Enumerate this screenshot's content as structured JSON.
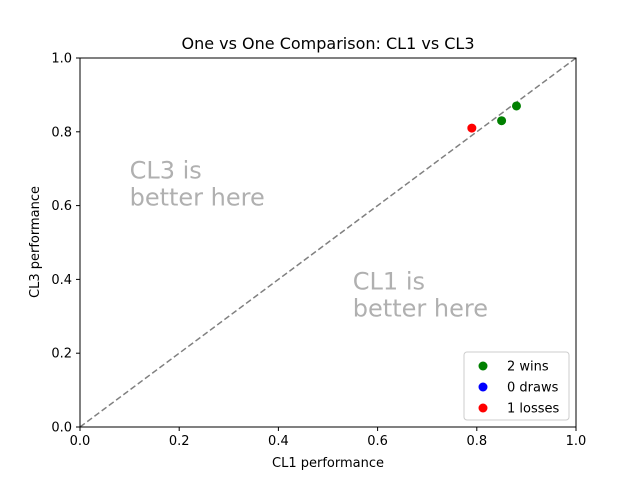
{
  "chart_data": {
    "type": "scatter",
    "title": "One vs One Comparison: CL1 vs CL3",
    "xlabel": "CL1 performance",
    "ylabel": "CL3 performance",
    "xlim": [
      0.0,
      1.0
    ],
    "ylim": [
      0.0,
      1.0
    ],
    "x_ticks": [
      "0.0",
      "0.2",
      "0.4",
      "0.6",
      "0.8",
      "1.0"
    ],
    "y_ticks": [
      "0.0",
      "0.2",
      "0.4",
      "0.6",
      "0.8",
      "1.0"
    ],
    "grid": false,
    "diagonal_line": true,
    "annotations": [
      {
        "lines": [
          "CL3 is",
          "better here"
        ],
        "x": 0.1,
        "y": 0.6
      },
      {
        "lines": [
          "CL1 is",
          "better here"
        ],
        "x": 0.55,
        "y": 0.3
      }
    ],
    "legend_position": "lower-right",
    "series": [
      {
        "name": "2 wins",
        "color": "#008000",
        "points": [
          [
            0.85,
            0.83
          ],
          [
            0.88,
            0.87
          ]
        ]
      },
      {
        "name": "0 draws",
        "color": "#0000ff",
        "points": []
      },
      {
        "name": "1 losses",
        "color": "#ff0000",
        "points": [
          [
            0.79,
            0.81
          ]
        ]
      }
    ]
  }
}
